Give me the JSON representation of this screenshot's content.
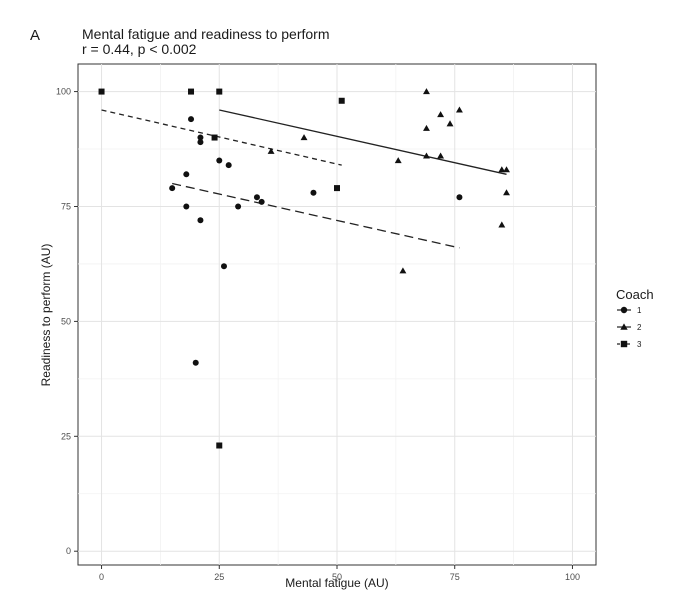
{
  "panel_label": "A",
  "chart_data": {
    "type": "scatter",
    "title": "Mental fatigue and readiness to perform",
    "subtitle": "r = 0.44, p < 0.002",
    "xlabel": "Mental fatigue (AU)",
    "ylabel": "Readiness to perform (AU)",
    "xlim": [
      -5,
      105
    ],
    "ylim": [
      -3,
      106
    ],
    "x_ticks": [
      0,
      25,
      50,
      75,
      100
    ],
    "y_ticks": [
      0,
      25,
      50,
      75,
      100
    ],
    "grid": true,
    "legend": {
      "title": "Coach",
      "position": "right",
      "entries": [
        {
          "label": "1",
          "shape": "circle",
          "line": "solid"
        },
        {
          "label": "2",
          "shape": "triangle",
          "line": "solid"
        },
        {
          "label": "3",
          "shape": "square",
          "line": "dashed"
        }
      ]
    },
    "series": [
      {
        "shape": "circle",
        "points": [
          [
            15,
            79
          ],
          [
            18,
            82
          ],
          [
            18,
            75
          ],
          [
            19,
            94
          ],
          [
            20,
            41
          ],
          [
            21,
            90
          ],
          [
            21,
            89
          ],
          [
            21,
            72
          ],
          [
            25,
            85
          ],
          [
            26,
            62
          ],
          [
            27,
            84
          ],
          [
            29,
            75
          ],
          [
            33,
            77
          ],
          [
            34,
            76
          ],
          [
            45,
            78
          ],
          [
            76,
            77
          ]
        ],
        "fit": {
          "x": [
            15,
            76
          ],
          "y": [
            80,
            66
          ],
          "dash": "dashed"
        }
      },
      {
        "shape": "triangle",
        "points": [
          [
            36,
            87
          ],
          [
            43,
            90
          ],
          [
            63,
            85
          ],
          [
            64,
            61
          ],
          [
            69,
            100
          ],
          [
            69,
            92
          ],
          [
            69,
            86
          ],
          [
            72,
            95
          ],
          [
            72,
            86
          ],
          [
            74,
            93
          ],
          [
            76,
            96
          ],
          [
            85,
            83
          ],
          [
            85,
            71
          ],
          [
            86,
            83
          ],
          [
            86,
            78
          ]
        ],
        "fit": {
          "x": [
            25,
            86
          ],
          "y": [
            96,
            82
          ],
          "dash": "solid"
        }
      },
      {
        "shape": "square",
        "points": [
          [
            0,
            100
          ],
          [
            19,
            100
          ],
          [
            24,
            90
          ],
          [
            25,
            100
          ],
          [
            25,
            23
          ],
          [
            50,
            79
          ],
          [
            51,
            98
          ]
        ],
        "fit": {
          "x": [
            0,
            51
          ],
          "y": [
            96,
            84
          ],
          "dash": "short-dash"
        }
      }
    ]
  }
}
